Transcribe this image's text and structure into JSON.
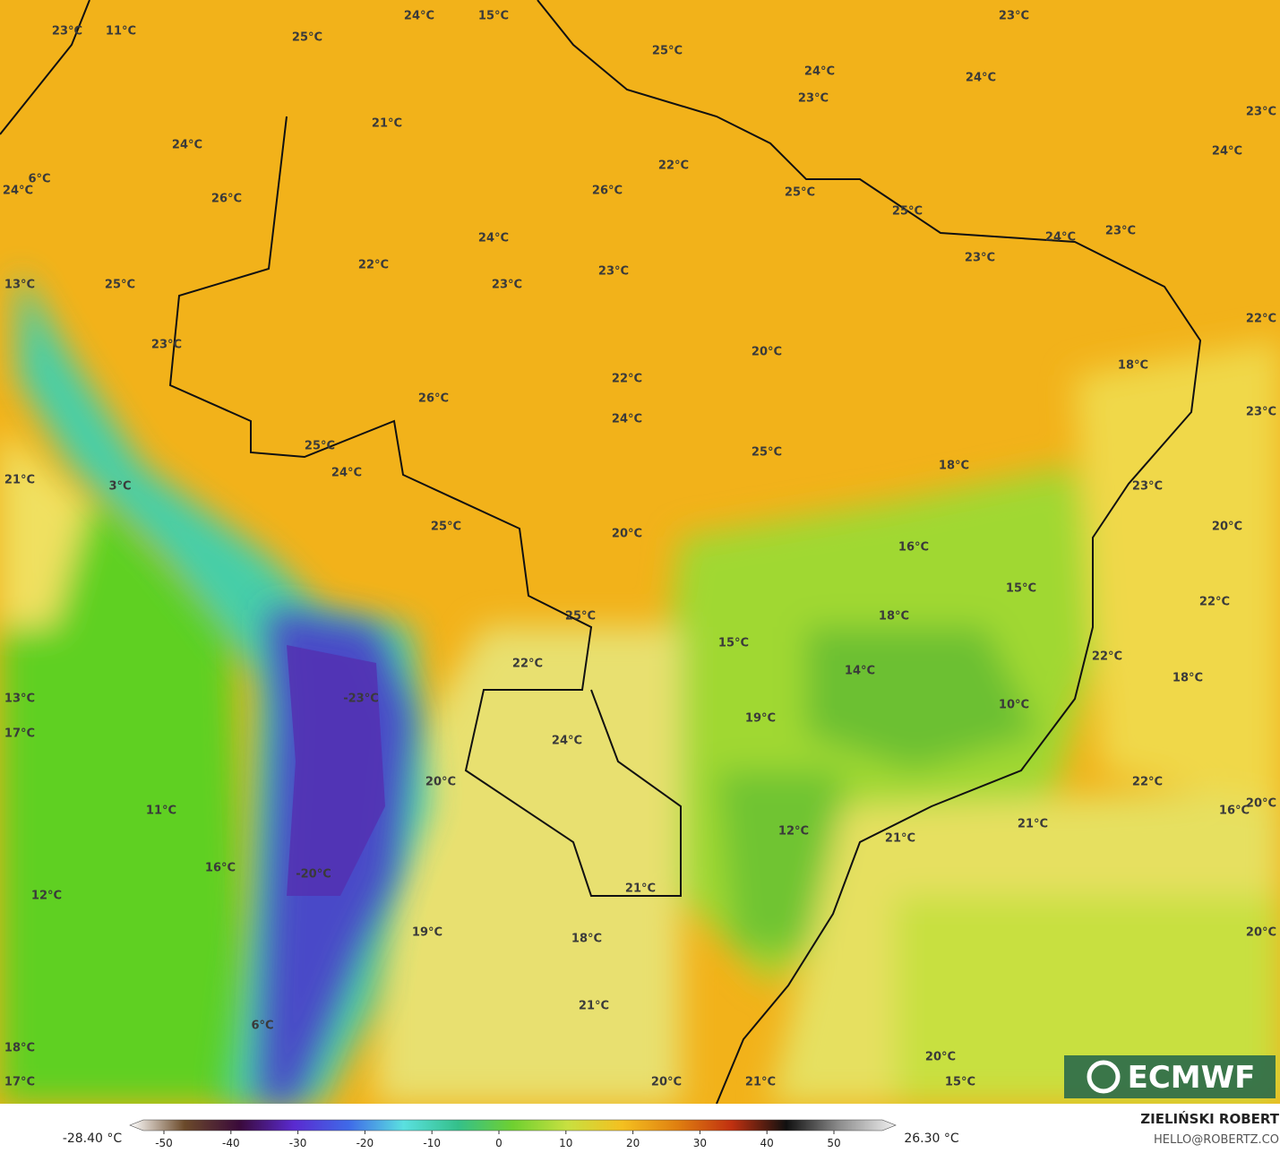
{
  "map_labels": [
    "23°C",
    "11°C",
    "24°C",
    "15°C",
    "23°C",
    "25°C",
    "25°C",
    "24°C",
    "24°C",
    "23°C",
    "23°C",
    "21°C",
    "24°C",
    "24°C",
    "22°C",
    "6°C",
    "24°C",
    "26°C",
    "25°C",
    "26°C",
    "25°C",
    "24°C",
    "23°C",
    "24°C",
    "22°C",
    "23°C",
    "23°C",
    "13°C",
    "25°C",
    "23°C",
    "22°C",
    "23°C",
    "20°C",
    "18°C",
    "22°C",
    "26°C",
    "23°C",
    "24°C",
    "25°C",
    "25°C",
    "18°C",
    "24°C",
    "21°C",
    "3°C",
    "23°C",
    "20°C",
    "25°C",
    "20°C",
    "16°C",
    "15°C",
    "22°C",
    "18°C",
    "25°C",
    "15°C",
    "22°C",
    "22°C",
    "14°C",
    "18°C",
    "-23°C",
    "13°C",
    "10°C",
    "19°C",
    "17°C",
    "24°C",
    "20°C",
    "22°C",
    "11°C",
    "20°C",
    "16°C",
    "21°C",
    "12°C",
    "21°C",
    "16°C",
    "-20°C",
    "21°C",
    "12°C",
    "19°C",
    "20°C",
    "18°C",
    "21°C",
    "6°C",
    "18°C",
    "20°C",
    "17°C",
    "20°C",
    "21°C",
    "15°C"
  ],
  "logo": "ECMWF",
  "colorbar": {
    "min_label": "-28.40 °C",
    "max_label": "26.30 °C",
    "ticks": [
      -50,
      -40,
      -30,
      -20,
      -10,
      0,
      10,
      20,
      30,
      40,
      50
    ],
    "colors": [
      "#ffffff",
      "#6b4a2a",
      "#3a0a3a",
      "#5a2ad0",
      "#3f6ae8",
      "#5ae0e0",
      "#34c08a",
      "#6fd030",
      "#c8e040",
      "#f4c020",
      "#e08010",
      "#c03010",
      "#101010",
      "#909090",
      "#f0f0f0"
    ]
  },
  "author": "ZIELIŃSKI ROBERT",
  "email": "HELLO@ROBERTZ.CO"
}
